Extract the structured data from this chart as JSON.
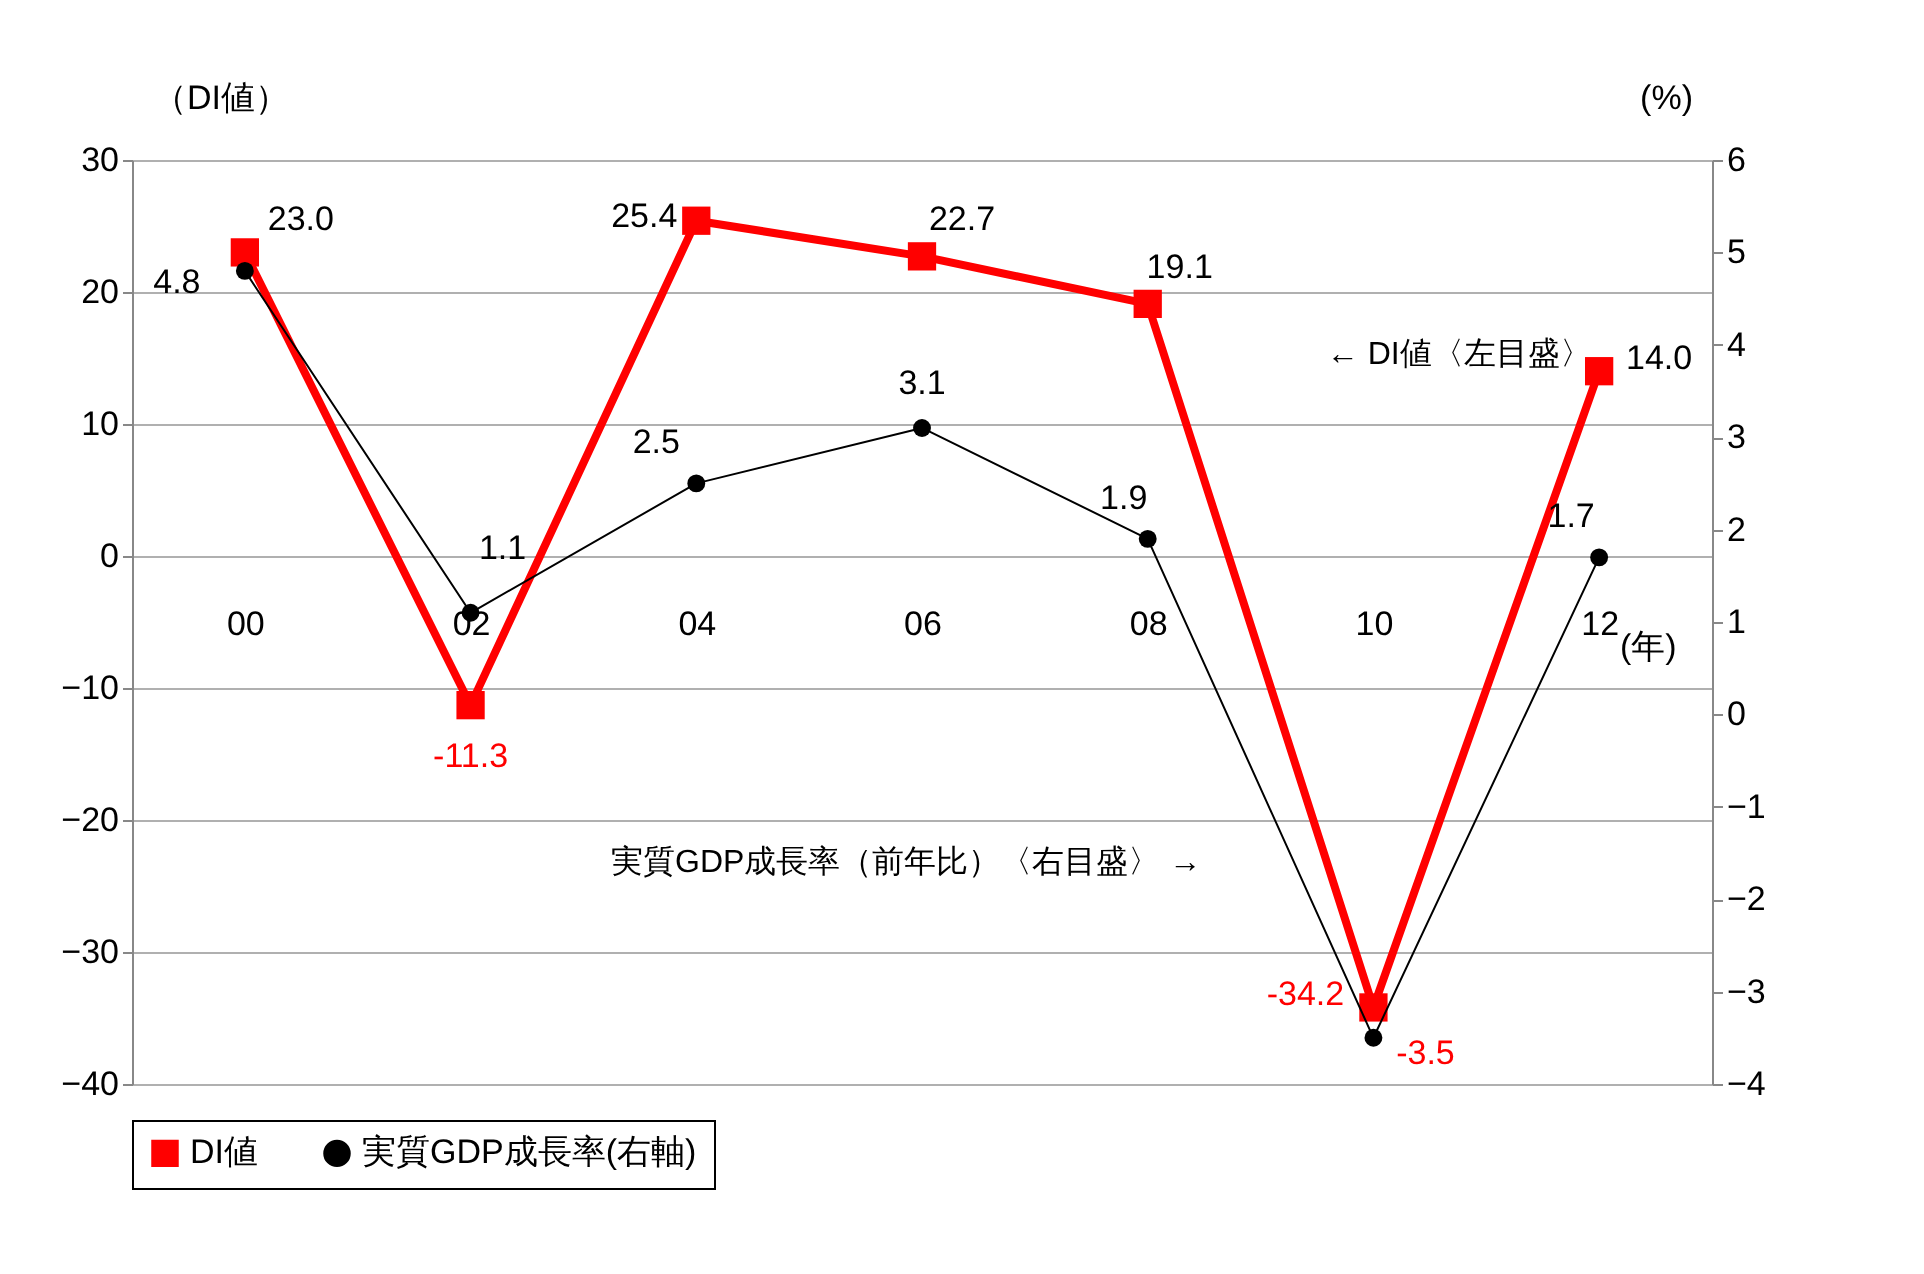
{
  "chart_data": {
    "type": "line",
    "categories": [
      "00",
      "02",
      "04",
      "06",
      "08",
      "10",
      "12"
    ],
    "series": [
      {
        "name": "DI値",
        "color": "#ff0000",
        "values": [
          23.0,
          -11.3,
          25.4,
          22.7,
          19.1,
          -34.2,
          14.0
        ],
        "value_labels": [
          "23.0",
          "-11.3",
          "25.4",
          "22.7",
          "19.1",
          "-34.2",
          "14.0"
        ],
        "marker": "square"
      },
      {
        "name": "実質GDP成長率(右軸)",
        "color": "#000000",
        "values": [
          4.8,
          1.1,
          2.5,
          3.1,
          1.9,
          -3.5,
          1.7
        ],
        "value_labels": [
          "4.8",
          "1.1",
          "2.5",
          "3.1",
          "1.9",
          "-3.5",
          "1.7"
        ],
        "marker": "circle",
        "axis": "y2"
      }
    ],
    "ylabel": "（DI値）",
    "y2label": "(%)",
    "xlabel": "(年)",
    "ylim": [
      -40,
      30
    ],
    "yticks": [
      -40,
      -30,
      -20,
      -10,
      0,
      10,
      20,
      30
    ],
    "y2lim": [
      -4,
      6
    ],
    "y2ticks": [
      -4,
      -3,
      -2,
      -1,
      0,
      1,
      2,
      3,
      4,
      5,
      6
    ],
    "annotations": [
      "← DI値〈左目盛〉",
      "実質GDP成長率（前年比）〈右目盛〉 →"
    ],
    "data_labels": true,
    "grid": "y",
    "legend": "bottom",
    "line_style": "solid"
  }
}
